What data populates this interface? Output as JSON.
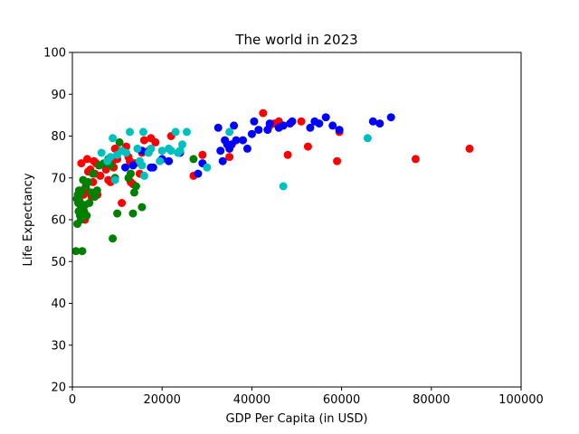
{
  "chart_data": {
    "type": "scatter",
    "title": "The world in 2023",
    "xlabel": "GDP Per Capita (in USD)",
    "ylabel": "Life Expectancy",
    "xlim": [
      0,
      100000
    ],
    "ylim": [
      20,
      100
    ],
    "xticks": [
      0,
      20000,
      40000,
      60000,
      80000,
      100000
    ],
    "yticks": [
      20,
      30,
      40,
      50,
      60,
      70,
      80,
      90,
      100
    ],
    "xtick_labels": [
      "0",
      "20000",
      "40000",
      "60000",
      "80000",
      "100000"
    ],
    "ytick_labels": [
      "20",
      "30",
      "40",
      "50",
      "60",
      "70",
      "80",
      "90",
      "100"
    ],
    "grid": false,
    "series": [
      {
        "color": "#ff0000",
        "points": [
          [
            2000,
            73.5
          ],
          [
            2200,
            67
          ],
          [
            2500,
            66
          ],
          [
            2800,
            60
          ],
          [
            3000,
            67.5
          ],
          [
            3300,
            74.5
          ],
          [
            3500,
            71.5
          ],
          [
            3800,
            66.5
          ],
          [
            4000,
            72
          ],
          [
            4300,
            65.5
          ],
          [
            4600,
            69
          ],
          [
            4800,
            74
          ],
          [
            5000,
            71
          ],
          [
            5300,
            73.5
          ],
          [
            5600,
            66
          ],
          [
            5900,
            73
          ],
          [
            6200,
            70.5
          ],
          [
            7500,
            72
          ],
          [
            8000,
            69.5
          ],
          [
            8500,
            69
          ],
          [
            8800,
            73.5
          ],
          [
            9200,
            72.5
          ],
          [
            9500,
            77
          ],
          [
            10000,
            74.5
          ],
          [
            10500,
            76.5
          ],
          [
            11000,
            64
          ],
          [
            12000,
            77.5
          ],
          [
            12500,
            75
          ],
          [
            12800,
            74
          ],
          [
            13000,
            69
          ],
          [
            13500,
            68.5
          ],
          [
            14000,
            73.5
          ],
          [
            15000,
            71
          ],
          [
            15500,
            76
          ],
          [
            16000,
            79
          ],
          [
            17000,
            76.5
          ],
          [
            17500,
            79.5
          ],
          [
            18500,
            78.5
          ],
          [
            22000,
            80
          ],
          [
            27000,
            70.5
          ],
          [
            29000,
            75.5
          ],
          [
            35000,
            75
          ],
          [
            42500,
            85.5
          ],
          [
            44000,
            82.5
          ],
          [
            45000,
            83
          ],
          [
            46000,
            83.5
          ],
          [
            47000,
            82.5
          ],
          [
            48000,
            75.5
          ],
          [
            51000,
            83.5
          ],
          [
            52500,
            77.5
          ],
          [
            59000,
            74
          ],
          [
            59500,
            81
          ],
          [
            76500,
            74.5
          ],
          [
            88500,
            77
          ]
        ]
      },
      {
        "color": "#008000",
        "points": [
          [
            800,
            52.5
          ],
          [
            1000,
            65
          ],
          [
            1100,
            59
          ],
          [
            1200,
            66
          ],
          [
            1300,
            64
          ],
          [
            1400,
            62
          ],
          [
            1500,
            67
          ],
          [
            1600,
            64.5
          ],
          [
            1700,
            61
          ],
          [
            1800,
            63.5
          ],
          [
            1900,
            60
          ],
          [
            2000,
            66.5
          ],
          [
            2200,
            52.5
          ],
          [
            2400,
            69.5
          ],
          [
            2600,
            62
          ],
          [
            2800,
            63.5
          ],
          [
            3000,
            68
          ],
          [
            3200,
            61
          ],
          [
            3500,
            69
          ],
          [
            3800,
            64
          ],
          [
            4200,
            66.5
          ],
          [
            4600,
            71
          ],
          [
            5000,
            65.5
          ],
          [
            5500,
            67
          ],
          [
            6000,
            73
          ],
          [
            7000,
            73.5
          ],
          [
            8000,
            74.5
          ],
          [
            8500,
            73
          ],
          [
            9000,
            55.5
          ],
          [
            9500,
            70
          ],
          [
            10000,
            61.5
          ],
          [
            10500,
            78.5
          ],
          [
            12500,
            70
          ],
          [
            13000,
            71
          ],
          [
            13500,
            61.5
          ],
          [
            13800,
            66.5
          ],
          [
            14200,
            68
          ],
          [
            15500,
            63
          ],
          [
            27000,
            74.5
          ]
        ]
      },
      {
        "color": "#0000ff",
        "points": [
          [
            11800,
            72.5
          ],
          [
            13500,
            73
          ],
          [
            15500,
            76.5
          ],
          [
            17500,
            72.5
          ],
          [
            18000,
            72.5
          ],
          [
            20000,
            74.5
          ],
          [
            21500,
            74
          ],
          [
            24000,
            76
          ],
          [
            28000,
            71
          ],
          [
            29000,
            73.5
          ],
          [
            32500,
            82
          ],
          [
            33000,
            76.5
          ],
          [
            33500,
            74
          ],
          [
            34000,
            79
          ],
          [
            34500,
            78
          ],
          [
            35000,
            77
          ],
          [
            35500,
            78
          ],
          [
            36000,
            82.5
          ],
          [
            36500,
            79
          ],
          [
            38000,
            79
          ],
          [
            39000,
            77
          ],
          [
            40000,
            80.5
          ],
          [
            40500,
            83.5
          ],
          [
            41500,
            81.5
          ],
          [
            43500,
            81.5
          ],
          [
            44000,
            83
          ],
          [
            46000,
            82
          ],
          [
            47000,
            82.5
          ],
          [
            48500,
            83
          ],
          [
            49000,
            83.5
          ],
          [
            53000,
            82
          ],
          [
            54000,
            83.5
          ],
          [
            55000,
            83
          ],
          [
            56500,
            84.5
          ],
          [
            58000,
            82.5
          ],
          [
            59500,
            81.5
          ],
          [
            67000,
            83.5
          ],
          [
            68500,
            83
          ],
          [
            71000,
            84.5
          ]
        ]
      },
      {
        "color": "#00bfbf",
        "points": [
          [
            6500,
            76
          ],
          [
            7800,
            74
          ],
          [
            8500,
            75
          ],
          [
            9000,
            79.5
          ],
          [
            9500,
            69.5
          ],
          [
            10000,
            75.5
          ],
          [
            11000,
            76.5
          ],
          [
            12000,
            76
          ],
          [
            12800,
            81
          ],
          [
            14500,
            77
          ],
          [
            15000,
            74
          ],
          [
            15500,
            73
          ],
          [
            15800,
            81
          ],
          [
            16000,
            70.5
          ],
          [
            17000,
            76
          ],
          [
            17500,
            77
          ],
          [
            19500,
            74
          ],
          [
            20000,
            76.5
          ],
          [
            21500,
            77
          ],
          [
            22000,
            76.5
          ],
          [
            23000,
            81
          ],
          [
            23500,
            76
          ],
          [
            24000,
            76.5
          ],
          [
            24500,
            78
          ],
          [
            25500,
            81
          ],
          [
            30000,
            72.5
          ],
          [
            35000,
            81
          ],
          [
            47000,
            68
          ],
          [
            65800,
            79.5
          ]
        ]
      }
    ]
  }
}
